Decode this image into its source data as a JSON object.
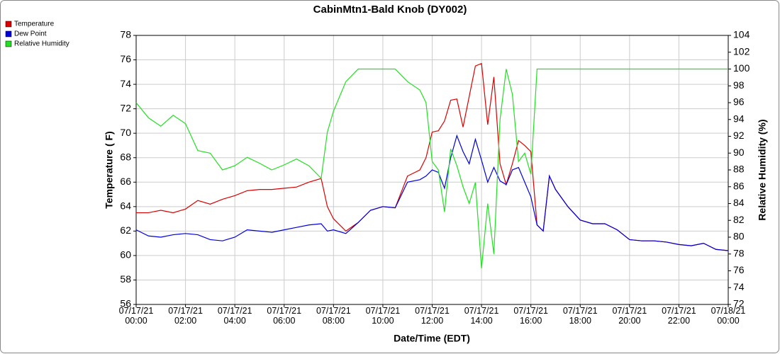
{
  "chart_data": {
    "type": "line",
    "title": "CabinMtn1-Bald Knob (DY002)",
    "x_label": "Date/Time (EDT)",
    "y_label": "Temperature ( F)",
    "y2_label": "Relative Humidity (%)",
    "x": [
      "07/17/21 00:00",
      "07/17/21 00:30",
      "07/17/21 01:00",
      "07/17/21 01:30",
      "07/17/21 02:00",
      "07/17/21 02:30",
      "07/17/21 03:00",
      "07/17/21 03:30",
      "07/17/21 04:00",
      "07/17/21 04:30",
      "07/17/21 05:00",
      "07/17/21 05:30",
      "07/17/21 06:00",
      "07/17/21 06:30",
      "07/17/21 07:00",
      "07/17/21 07:30",
      "07/17/21 07:45",
      "07/17/21 08:00",
      "07/17/21 08:30",
      "07/17/21 09:00",
      "07/17/21 09:30",
      "07/17/21 10:00",
      "07/17/21 10:30",
      "07/17/21 11:00",
      "07/17/21 11:30",
      "07/17/21 11:45",
      "07/17/21 12:00",
      "07/17/21 12:15",
      "07/17/21 12:30",
      "07/17/21 12:45",
      "07/17/21 13:00",
      "07/17/21 13:15",
      "07/17/21 13:30",
      "07/17/21 13:45",
      "07/17/21 14:00",
      "07/17/21 14:15",
      "07/17/21 14:30",
      "07/17/21 14:45",
      "07/17/21 15:00",
      "07/17/21 15:15",
      "07/17/21 15:30",
      "07/17/21 15:45",
      "07/17/21 16:00",
      "07/17/21 16:15",
      "07/17/21 16:30",
      "07/17/21 16:45",
      "07/17/21 17:00",
      "07/17/21 17:30",
      "07/17/21 18:00",
      "07/17/21 18:30",
      "07/17/21 19:00",
      "07/17/21 19:30",
      "07/17/21 20:00",
      "07/17/21 20:30",
      "07/17/21 21:00",
      "07/17/21 21:30",
      "07/17/21 22:00",
      "07/17/21 22:30",
      "07/17/21 23:00",
      "07/17/21 23:30",
      "07/18/21 00:00"
    ],
    "series": [
      {
        "name": "Temperature",
        "color": "#dd0000",
        "values": [
          63.5,
          63.5,
          63.7,
          63.5,
          63.8,
          64.5,
          64.2,
          64.6,
          64.9,
          65.3,
          65.4,
          65.4,
          65.5,
          65.6,
          66.0,
          66.3,
          64.0,
          63.0,
          62.0,
          62.7,
          63.7,
          64.0,
          63.9,
          66.5,
          67.0,
          68.0,
          70.1,
          70.2,
          71.0,
          72.7,
          72.8,
          70.5,
          73.0,
          75.5,
          75.7,
          70.7,
          74.6,
          67.5,
          65.8,
          67.5,
          69.4,
          69.0,
          68.5,
          62.5,
          62.0,
          66.5,
          65.4,
          64.0,
          62.9,
          62.6,
          62.6,
          62.1,
          61.3,
          61.2,
          61.2,
          61.1,
          60.9,
          60.8,
          61.0,
          60.5,
          60.4
        ]
      },
      {
        "name": "Dew Point",
        "color": "#0000dd",
        "values": [
          62.1,
          61.6,
          61.5,
          61.7,
          61.8,
          61.7,
          61.3,
          61.2,
          61.5,
          62.1,
          62.0,
          61.9,
          62.1,
          62.3,
          62.5,
          62.6,
          62.0,
          62.1,
          61.8,
          62.7,
          63.7,
          64.0,
          63.9,
          66.0,
          66.2,
          66.5,
          67.0,
          66.8,
          65.5,
          68.0,
          69.8,
          68.5,
          67.5,
          69.5,
          67.8,
          66.0,
          67.2,
          66.1,
          65.8,
          67.0,
          67.2,
          66.0,
          64.8,
          62.5,
          62.0,
          66.5,
          65.4,
          64.0,
          62.9,
          62.6,
          62.6,
          62.1,
          61.3,
          61.2,
          61.2,
          61.1,
          60.9,
          60.8,
          61.0,
          60.5,
          60.4
        ]
      },
      {
        "name": "Relative Humidity",
        "color": "#22e022",
        "axis": "y2",
        "values": [
          96,
          94.2,
          93.2,
          94.5,
          93.5,
          90.3,
          90,
          88,
          88.5,
          89.5,
          88.8,
          88,
          88.6,
          89.3,
          88.5,
          87,
          92.5,
          95,
          98.5,
          100,
          100,
          100,
          100,
          98.5,
          97.5,
          96,
          89,
          88,
          83,
          90.5,
          88.5,
          86,
          84,
          86.5,
          76.3,
          84,
          78,
          94,
          100,
          97,
          89,
          90,
          87.5,
          100,
          100,
          100,
          100,
          100,
          100,
          100,
          100,
          100,
          100,
          100,
          100,
          100,
          100,
          100,
          100,
          100,
          100
        ]
      }
    ],
    "xlim": [
      "07/17/21 00:00",
      "07/18/21 00:00"
    ],
    "xticks": [
      "07/17/21 00:00",
      "07/17/21 02:00",
      "07/17/21 04:00",
      "07/17/21 06:00",
      "07/17/21 08:00",
      "07/17/21 10:00",
      "07/17/21 12:00",
      "07/17/21 14:00",
      "07/17/21 16:00",
      "07/17/21 18:00",
      "07/17/21 20:00",
      "07/17/21 22:00",
      "07/18/21 00:00"
    ],
    "ylim": [
      56,
      78
    ],
    "yticks": [
      56,
      58,
      60,
      62,
      64,
      66,
      68,
      70,
      72,
      74,
      76,
      78
    ],
    "y2lim": [
      72,
      104
    ],
    "y2ticks": [
      72,
      74,
      76,
      78,
      80,
      82,
      84,
      86,
      88,
      90,
      92,
      94,
      96,
      98,
      100,
      102,
      104
    ],
    "grid": true,
    "legend": "top-left"
  }
}
